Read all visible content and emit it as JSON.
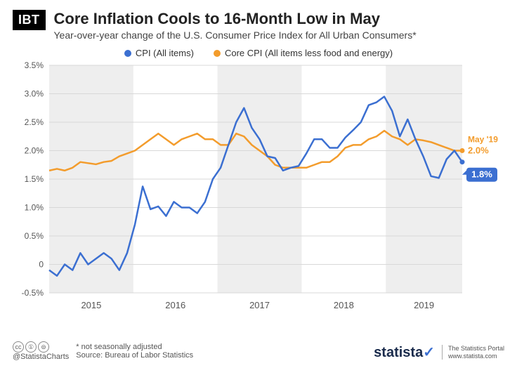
{
  "logo": "IBT",
  "title": "Core Inflation Cools to 16-Month Low in May",
  "subtitle": "Year-over-year change of the U.S. Consumer Price Index for All Urban Consumers*",
  "legend": {
    "series1": {
      "label": "CPI (All items)",
      "color": "#3b6fd1"
    },
    "series2": {
      "label": "Core CPI (All items less food and energy)",
      "color": "#f39c2c"
    }
  },
  "chart": {
    "type": "line",
    "background_color": "#ffffff",
    "plot_bands_color": "#eeeeee",
    "grid_color": "#d8d8d8",
    "axis_text_color": "#555555",
    "ylim": [
      -0.5,
      3.5
    ],
    "yticks": [
      -0.5,
      0,
      0.5,
      1.0,
      1.5,
      2.0,
      2.5,
      3.0,
      3.5
    ],
    "ytick_labels": [
      "-0.5%",
      "0",
      "0.5%",
      "1.0%",
      "1.5%",
      "2.0%",
      "2.5%",
      "3.0%",
      "3.5%"
    ],
    "x_years": [
      "2015",
      "2016",
      "2017",
      "2018",
      "2019"
    ],
    "n_points": 54,
    "line_width": 2.5,
    "marker_radius": 3.5,
    "band_alternating": true,
    "series_cpi": {
      "color": "#3b6fd1",
      "values": [
        -0.1,
        -0.2,
        0.0,
        -0.1,
        0.2,
        0.0,
        0.1,
        0.2,
        0.1,
        -0.1,
        0.2,
        0.7,
        1.37,
        0.97,
        1.02,
        0.85,
        1.1,
        1.0,
        1.0,
        0.9,
        1.1,
        1.5,
        1.7,
        2.1,
        2.5,
        2.75,
        2.4,
        2.2,
        1.9,
        1.87,
        1.65,
        1.7,
        1.73,
        1.95,
        2.2,
        2.2,
        2.05,
        2.05,
        2.23,
        2.36,
        2.5,
        2.8,
        2.85,
        2.95,
        2.7,
        2.25,
        2.55,
        2.2,
        1.9,
        1.55,
        1.52,
        1.85,
        2.0,
        1.8
      ]
    },
    "series_core": {
      "color": "#f39c2c",
      "values": [
        1.65,
        1.68,
        1.65,
        1.7,
        1.8,
        1.78,
        1.76,
        1.8,
        1.82,
        1.9,
        1.95,
        2.0,
        2.1,
        2.2,
        2.3,
        2.2,
        2.1,
        2.2,
        2.25,
        2.3,
        2.2,
        2.2,
        2.1,
        2.1,
        2.3,
        2.25,
        2.1,
        2.0,
        1.9,
        1.75,
        1.7,
        1.7,
        1.7,
        1.7,
        1.75,
        1.8,
        1.8,
        1.9,
        2.05,
        2.1,
        2.1,
        2.2,
        2.25,
        2.35,
        2.25,
        2.2,
        2.1,
        2.2,
        2.18,
        2.15,
        2.1,
        2.05,
        2.0,
        2.0
      ]
    },
    "callout": {
      "month_label": "May '19",
      "core_value": "2.0%",
      "cpi_value": "1.8%",
      "core_color": "#f39c2c",
      "cpi_color": "#3b6fd1",
      "cpi_box_bg": "#3b6fd1",
      "cpi_box_text": "#ffffff"
    }
  },
  "footer": {
    "twitter": "@StatistaCharts",
    "note": "* not seasonally adjusted",
    "source": "Source: Bureau of Labor Statistics",
    "statista": "statista",
    "statista_tag1": "The Statistics Portal",
    "statista_tag2": "www.statista.com"
  }
}
